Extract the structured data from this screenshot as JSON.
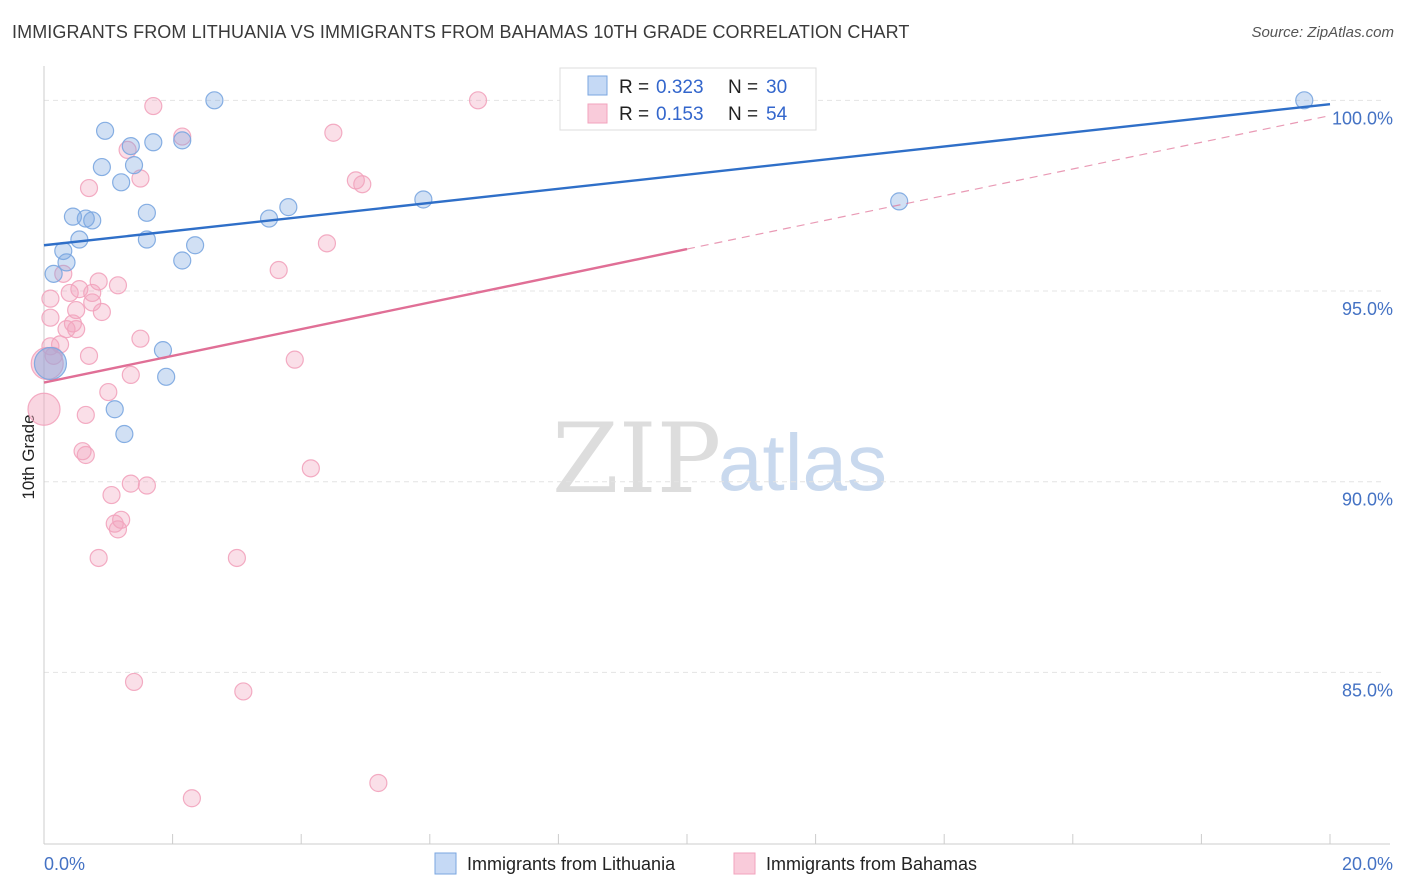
{
  "header": {
    "title": "IMMIGRANTS FROM LITHUANIA VS IMMIGRANTS FROM BAHAMAS 10TH GRADE CORRELATION CHART",
    "source": "Source: ZipAtlas.com"
  },
  "watermark": {
    "zip": "ZIP",
    "atlas": "atlas"
  },
  "legend": {
    "rows": [
      {
        "r_label": "R =",
        "r_value": "0.323",
        "n_label": "N =",
        "n_value": "30"
      },
      {
        "r_label": "R =",
        "r_value": "0.153",
        "n_label": "N =",
        "n_value": "54"
      }
    ]
  },
  "chart_data": {
    "type": "scatter",
    "title": "IMMIGRANTS FROM LITHUANIA VS IMMIGRANTS FROM BAHAMAS 10TH GRADE CORRELATION CHART",
    "xlabel": "",
    "ylabel": "10th Grade",
    "xlim": [
      0,
      20
    ],
    "ylim": [
      80.5,
      100.9
    ],
    "x_tick_labels": [
      "0.0%",
      "20.0%"
    ],
    "y_ticks": [
      {
        "value": 85,
        "label": "85.0%"
      },
      {
        "value": 90,
        "label": "90.0%"
      },
      {
        "value": 95,
        "label": "95.0%"
      },
      {
        "value": 100,
        "label": "100.0%"
      }
    ],
    "colors": {
      "lithuania": "#7aa6e0",
      "lithuania_line": "#2f6fc8",
      "bahamas": "#f2a3bd",
      "bahamas_line": "#e06f96"
    },
    "series": [
      {
        "name": "Immigrants from Lithuania",
        "r": 0.323,
        "n": 30,
        "trend": {
          "x": [
            0,
            20
          ],
          "y": [
            96.2,
            99.9
          ]
        },
        "points": [
          [
            2.65,
            100.0
          ],
          [
            19.6,
            100.0
          ],
          [
            0.95,
            99.2
          ],
          [
            1.7,
            98.9
          ],
          [
            2.15,
            98.95
          ],
          [
            1.35,
            98.8
          ],
          [
            0.9,
            98.25
          ],
          [
            1.4,
            98.3
          ],
          [
            1.2,
            97.85
          ],
          [
            5.9,
            97.4
          ],
          [
            1.6,
            97.05
          ],
          [
            3.8,
            97.2
          ],
          [
            13.3,
            97.35
          ],
          [
            0.45,
            96.95
          ],
          [
            0.65,
            96.9
          ],
          [
            0.75,
            96.85
          ],
          [
            3.5,
            96.9
          ],
          [
            0.55,
            96.35
          ],
          [
            1.6,
            96.35
          ],
          [
            2.35,
            96.2
          ],
          [
            0.3,
            96.05
          ],
          [
            0.35,
            95.75
          ],
          [
            2.15,
            95.8
          ],
          [
            0.15,
            95.45
          ],
          [
            1.85,
            93.45
          ],
          [
            0.1,
            93.1
          ],
          [
            1.9,
            92.75
          ],
          [
            1.1,
            91.9
          ],
          [
            1.25,
            91.25
          ]
        ]
      },
      {
        "name": "Immigrants from Bahamas",
        "r": 0.153,
        "n": 54,
        "trend": {
          "x": [
            0,
            10
          ],
          "y": [
            92.6,
            96.1
          ]
        },
        "trend_ext": {
          "x": [
            10,
            20
          ],
          "y": [
            96.1,
            99.6
          ]
        },
        "points": [
          [
            6.75,
            100.0
          ],
          [
            1.7,
            99.85
          ],
          [
            2.15,
            99.05
          ],
          [
            4.5,
            99.15
          ],
          [
            1.3,
            98.7
          ],
          [
            1.5,
            97.95
          ],
          [
            4.85,
            97.9
          ],
          [
            4.95,
            97.8
          ],
          [
            0.7,
            97.7
          ],
          [
            4.4,
            96.25
          ],
          [
            3.65,
            95.55
          ],
          [
            0.3,
            95.45
          ],
          [
            1.15,
            95.15
          ],
          [
            0.85,
            95.25
          ],
          [
            0.55,
            95.05
          ],
          [
            0.75,
            94.95
          ],
          [
            0.4,
            94.95
          ],
          [
            0.1,
            94.8
          ],
          [
            0.75,
            94.7
          ],
          [
            0.5,
            94.5
          ],
          [
            0.9,
            94.45
          ],
          [
            0.1,
            94.3
          ],
          [
            0.45,
            94.15
          ],
          [
            0.35,
            94.0
          ],
          [
            0.5,
            94.0
          ],
          [
            1.5,
            93.75
          ],
          [
            0.25,
            93.6
          ],
          [
            0.1,
            93.55
          ],
          [
            0.15,
            93.3
          ],
          [
            0.7,
            93.3
          ],
          [
            3.9,
            93.2
          ],
          [
            0.05,
            93.1
          ],
          [
            1.35,
            92.8
          ],
          [
            1.0,
            92.35
          ],
          [
            0.0,
            91.9
          ],
          [
            0.65,
            91.75
          ],
          [
            0.6,
            90.8
          ],
          [
            0.65,
            90.7
          ],
          [
            4.15,
            90.35
          ],
          [
            1.35,
            89.95
          ],
          [
            1.6,
            89.9
          ],
          [
            1.05,
            89.65
          ],
          [
            1.2,
            89.0
          ],
          [
            1.1,
            88.9
          ],
          [
            1.15,
            88.75
          ],
          [
            0.85,
            88.0
          ],
          [
            3.0,
            88.0
          ],
          [
            1.4,
            84.75
          ],
          [
            3.1,
            84.5
          ],
          [
            5.2,
            82.1
          ],
          [
            2.3,
            81.7
          ]
        ]
      }
    ]
  }
}
